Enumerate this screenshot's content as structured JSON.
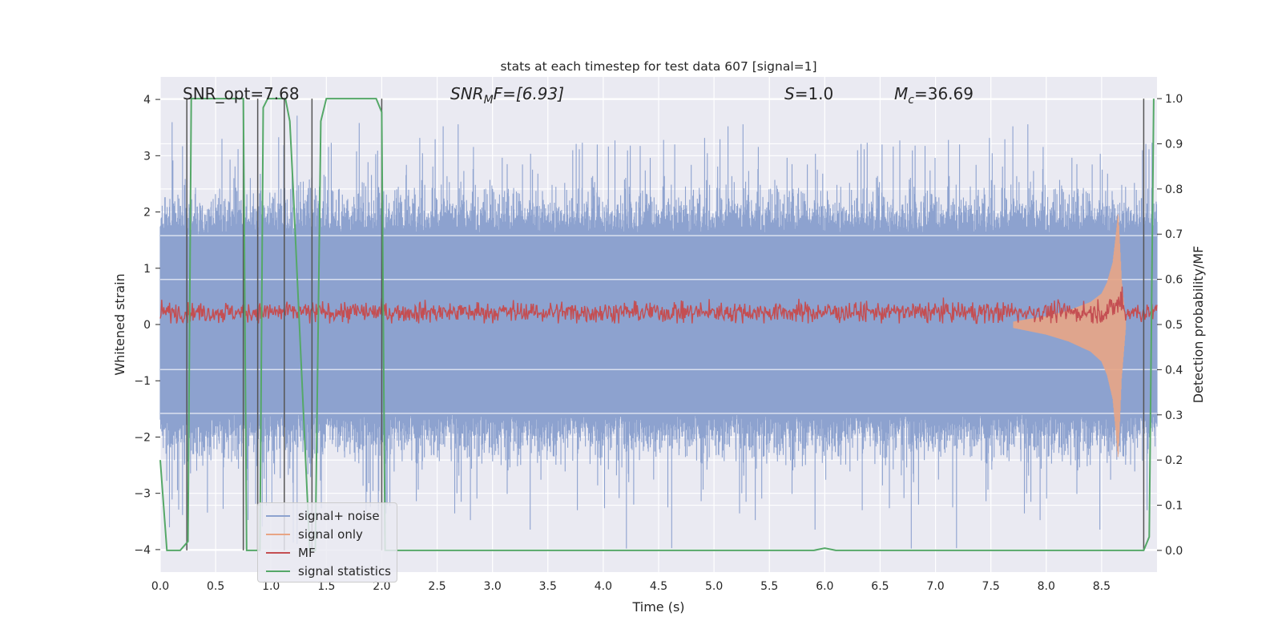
{
  "chart_data": {
    "type": "line",
    "title": "stats at each timestep for test data 607 [signal=1]",
    "xlabel": "Time (s)",
    "ylabel": "Whitened strain",
    "y2label": "Detection probability/MF",
    "xlim": [
      0.0,
      9.0
    ],
    "ylim": [
      -4.4,
      4.4
    ],
    "y2lim": [
      -0.048,
      1.048
    ],
    "x_ticks": [
      "0.0",
      "0.5",
      "1.0",
      "1.5",
      "2.0",
      "2.5",
      "3.0",
      "3.5",
      "4.0",
      "4.5",
      "5.0",
      "5.5",
      "6.0",
      "6.5",
      "7.0",
      "7.5",
      "8.0",
      "8.5"
    ],
    "x_tick_values": [
      0,
      0.5,
      1,
      1.5,
      2,
      2.5,
      3,
      3.5,
      4,
      4.5,
      5,
      5.5,
      6,
      6.5,
      7,
      7.5,
      8,
      8.5
    ],
    "y_ticks": [
      "4",
      "3",
      "2",
      "1",
      "0",
      "−1",
      "−2",
      "−3",
      "−4"
    ],
    "y_tick_values": [
      4,
      3,
      2,
      1,
      0,
      -1,
      -2,
      -3,
      -4
    ],
    "y2_ticks": [
      "1.0",
      "0.9",
      "0.8",
      "0.7",
      "0.6",
      "0.5",
      "0.4",
      "0.3",
      "0.2",
      "0.1",
      "0.0"
    ],
    "y2_tick_values": [
      1.0,
      0.9,
      0.8,
      0.7,
      0.6,
      0.5,
      0.4,
      0.3,
      0.2,
      0.1,
      0.0
    ],
    "annotations": {
      "snr_opt": "SNR_opt=7.68",
      "snr_mf_sym": "SNR",
      "snr_mf_sub": "M",
      "snr_mf_rest": "F=[6.93]",
      "s_sym": "S",
      "s_rest": "=1.0",
      "mc_sym": "M",
      "mc_sub": "c",
      "mc_rest": "=36.69"
    },
    "legend": [
      "signal+ noise",
      "signal only",
      "MF",
      "signal statistics"
    ],
    "colors": {
      "noise": "#8da2cf",
      "signal": "#e8a585",
      "mf": "#c44e52",
      "stat": "#55a868",
      "vline": "#555555",
      "axes_bg": "#eaeaf2",
      "grid": "#ffffff"
    },
    "series": [
      {
        "name": "signal statistics",
        "axis": "right",
        "x": [
          0.0,
          0.06,
          0.18,
          0.25,
          0.28,
          0.4,
          0.5,
          0.6,
          0.7,
          0.75,
          0.78,
          0.81,
          0.85,
          0.9,
          0.93,
          0.97,
          1.05,
          1.13,
          1.17,
          1.2,
          1.35,
          1.4,
          1.45,
          1.5,
          1.7,
          1.9,
          1.95,
          2.0,
          2.03,
          2.06,
          2.1,
          2.2,
          3.0,
          4.0,
          5.0,
          5.9,
          6.0,
          6.1,
          7.0,
          8.0,
          8.7,
          8.88,
          8.93,
          8.97
        ],
        "values": [
          0.2,
          0.0,
          0.0,
          0.02,
          1.0,
          1.0,
          1.0,
          1.0,
          1.0,
          1.0,
          0.0,
          0.0,
          0.0,
          0.0,
          0.98,
          1.0,
          1.0,
          1.0,
          0.95,
          0.8,
          0.0,
          0.0,
          0.95,
          1.0,
          1.0,
          1.0,
          1.0,
          0.97,
          0.0,
          0.0,
          0.0,
          0.0,
          0.0,
          0.0,
          0.0,
          0.0,
          0.005,
          0.0,
          0.0,
          0.0,
          0.0,
          0.0,
          0.03,
          1.0
        ]
      },
      {
        "name": "detection times",
        "axis": "right",
        "x": [
          0.24,
          0.75,
          0.88,
          1.12,
          1.37,
          2.0,
          8.88
        ],
        "values": [
          1.0,
          1.0,
          1.0,
          1.0,
          1.0,
          1.0,
          1.0
        ]
      },
      {
        "name": "signal only",
        "envelope_x": [
          7.7,
          8.0,
          8.2,
          8.4,
          8.5,
          8.55,
          8.6,
          8.63,
          8.65,
          8.68,
          8.72
        ],
        "envelope": [
          0.05,
          0.15,
          0.25,
          0.4,
          0.55,
          0.75,
          1.1,
          1.6,
          2.0,
          0.8,
          0.0
        ]
      }
    ]
  }
}
